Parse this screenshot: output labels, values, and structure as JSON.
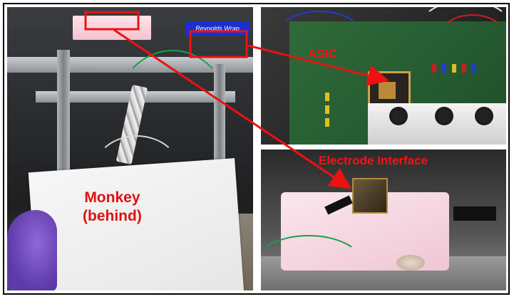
{
  "labels": {
    "monkey_line1": "Monkey",
    "monkey_line2": "(behind)",
    "asic": "ASIC",
    "electrode_interface": "Electrode Interface"
  },
  "background_sign": "Reynolds Wrap",
  "colors": {
    "annotation_red": "#ff1010",
    "glove_purple": "#6b45bd",
    "foam_pink": "#f4c9d6",
    "board_green": "#2f6b3a"
  }
}
